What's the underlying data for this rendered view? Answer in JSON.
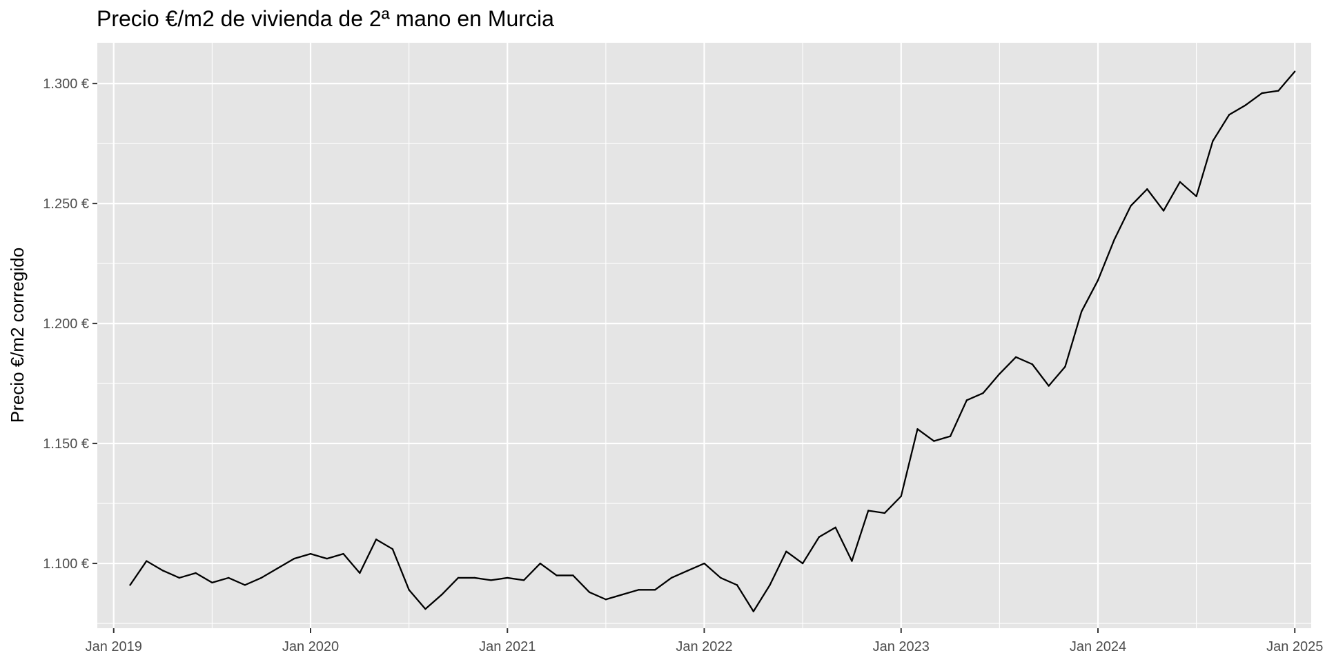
{
  "chart_data": {
    "type": "line",
    "title": "Precio €/m2 de vivienda de 2ª mano en Murcia",
    "xlabel": "",
    "ylabel": "Precio €/m2 corregido",
    "x_tick_labels": [
      "Jan 2019",
      "Jan 2020",
      "Jan 2021",
      "Jan 2022",
      "Jan 2023",
      "Jan 2024",
      "Jan 2025"
    ],
    "y_tick_labels": [
      "1.100 €",
      "1.150 €",
      "1.200 €",
      "1.250 €",
      "1.300 €"
    ],
    "y_ticks": [
      1100,
      1150,
      1200,
      1250,
      1300
    ],
    "xlim": [
      "2018-12-01",
      "2025-02-01"
    ],
    "ylim": [
      1073,
      1317
    ],
    "grid": true,
    "legend": "none",
    "colors": {
      "panel": "#e5e5e5",
      "grid": "#ffffff",
      "line": "#000000",
      "tick_text": "#4d4d4d"
    },
    "series": [
      {
        "x": [
          "2019-02",
          "2019-03",
          "2019-04",
          "2019-05",
          "2019-06",
          "2019-07",
          "2019-08",
          "2019-09",
          "2019-10",
          "2019-11",
          "2019-12",
          "2020-01",
          "2020-02",
          "2020-03",
          "2020-04",
          "2020-05",
          "2020-06",
          "2020-07",
          "2020-08",
          "2020-09",
          "2020-10",
          "2020-11",
          "2020-12",
          "2021-01",
          "2021-02",
          "2021-03",
          "2021-04",
          "2021-05",
          "2021-06",
          "2021-07",
          "2021-08",
          "2021-09",
          "2021-10",
          "2021-11",
          "2021-12",
          "2022-01",
          "2022-02",
          "2022-03",
          "2022-04",
          "2022-05",
          "2022-06",
          "2022-07",
          "2022-08",
          "2022-09",
          "2022-10",
          "2022-11",
          "2022-12",
          "2023-01",
          "2023-02",
          "2023-03",
          "2023-04",
          "2023-05",
          "2023-06",
          "2023-07",
          "2023-08",
          "2023-09",
          "2023-10",
          "2023-11",
          "2023-12",
          "2024-01",
          "2024-02",
          "2024-03",
          "2024-04",
          "2024-05",
          "2024-06",
          "2024-07",
          "2024-08",
          "2024-09",
          "2024-10",
          "2024-11",
          "2024-12",
          "2025-01"
        ],
        "values": [
          1091,
          1101,
          1097,
          1094,
          1096,
          1092,
          1094,
          1091,
          1094,
          1098,
          1102,
          1104,
          1102,
          1104,
          1096,
          1110,
          1106,
          1089,
          1081,
          1087,
          1094,
          1094,
          1093,
          1094,
          1093,
          1100,
          1095,
          1095,
          1088,
          1085,
          1087,
          1089,
          1089,
          1094,
          1097,
          1100,
          1094,
          1091,
          1080,
          1091,
          1105,
          1100,
          1111,
          1115,
          1101,
          1122,
          1121,
          1128,
          1156,
          1151,
          1153,
          1168,
          1171,
          1179,
          1186,
          1183,
          1174,
          1182,
          1205,
          1218,
          1235,
          1249,
          1256,
          1247,
          1259,
          1253,
          1276,
          1287,
          1291,
          1296,
          1297,
          1305
        ]
      }
    ]
  }
}
